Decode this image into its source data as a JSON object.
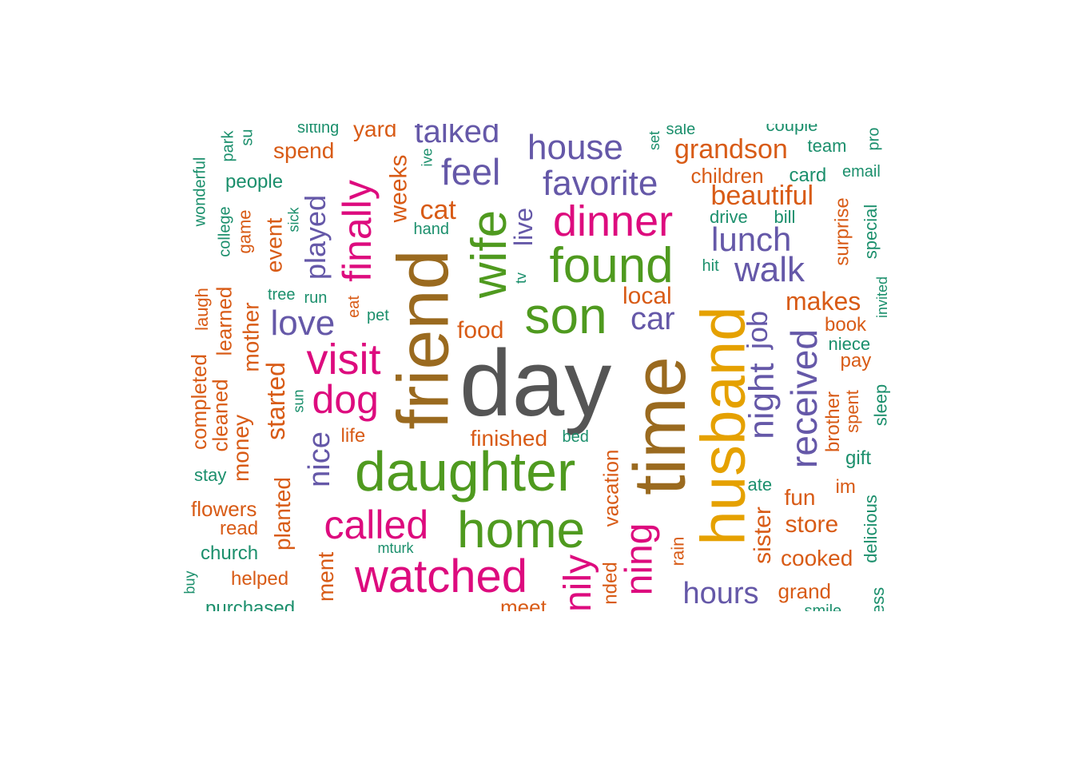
{
  "colors": {
    "gray": "#555555",
    "brown": "#9a6a1f",
    "green": "#4f9a1f",
    "magenta": "#dd0b7e",
    "purple": "#6558a8",
    "gold": "#e5a100",
    "orange": "#d85b16",
    "teal": "#1b8f6c"
  },
  "words": [
    {
      "text": "day",
      "color": "gray"
    },
    {
      "text": "time",
      "color": "brown"
    },
    {
      "text": "friend",
      "color": "brown"
    },
    {
      "text": "husband",
      "color": "gold"
    },
    {
      "text": "daughter",
      "color": "green"
    },
    {
      "text": "home",
      "color": "green"
    },
    {
      "text": "son",
      "color": "green"
    },
    {
      "text": "found",
      "color": "green"
    },
    {
      "text": "wife",
      "color": "green"
    },
    {
      "text": "watched",
      "color": "magenta"
    },
    {
      "text": "called",
      "color": "magenta"
    },
    {
      "text": "dinner",
      "color": "magenta"
    },
    {
      "text": "visit",
      "color": "magenta"
    },
    {
      "text": "dog",
      "color": "magenta"
    },
    {
      "text": "finally",
      "color": "magenta"
    },
    {
      "text": "ning",
      "color": "magenta"
    },
    {
      "text": "nily",
      "color": "magenta"
    },
    {
      "text": "house",
      "color": "purple"
    },
    {
      "text": "feel",
      "color": "purple"
    },
    {
      "text": "favorite",
      "color": "purple"
    },
    {
      "text": "talked",
      "color": "purple"
    },
    {
      "text": "lunch",
      "color": "purple"
    },
    {
      "text": "walk",
      "color": "purple"
    },
    {
      "text": "night",
      "color": "purple"
    },
    {
      "text": "job",
      "color": "purple"
    },
    {
      "text": "received",
      "color": "purple"
    },
    {
      "text": "car",
      "color": "purple"
    },
    {
      "text": "love",
      "color": "purple"
    },
    {
      "text": "played",
      "color": "purple"
    },
    {
      "text": "nice",
      "color": "purple"
    },
    {
      "text": "hours",
      "color": "purple"
    },
    {
      "text": "live",
      "color": "purple"
    },
    {
      "text": "grandson",
      "color": "orange"
    },
    {
      "text": "beautiful",
      "color": "orange"
    },
    {
      "text": "makes",
      "color": "orange"
    },
    {
      "text": "cat",
      "color": "orange"
    },
    {
      "text": "spend",
      "color": "orange"
    },
    {
      "text": "yard",
      "color": "orange"
    },
    {
      "text": "weeks",
      "color": "orange"
    },
    {
      "text": "local",
      "color": "orange"
    },
    {
      "text": "food",
      "color": "orange"
    },
    {
      "text": "finished",
      "color": "orange"
    },
    {
      "text": "life",
      "color": "orange"
    },
    {
      "text": "event",
      "color": "orange"
    },
    {
      "text": "started",
      "color": "orange"
    },
    {
      "text": "planted",
      "color": "orange"
    },
    {
      "text": "mother",
      "color": "orange"
    },
    {
      "text": "money",
      "color": "orange"
    },
    {
      "text": "game",
      "color": "orange"
    },
    {
      "text": "learned",
      "color": "orange"
    },
    {
      "text": "cleaned",
      "color": "orange"
    },
    {
      "text": "completed",
      "color": "orange"
    },
    {
      "text": "laugh",
      "color": "orange"
    },
    {
      "text": "flowers",
      "color": "orange"
    },
    {
      "text": "read",
      "color": "orange"
    },
    {
      "text": "helped",
      "color": "orange"
    },
    {
      "text": "ment",
      "color": "orange"
    },
    {
      "text": "vacation",
      "color": "orange"
    },
    {
      "text": "nded",
      "color": "orange"
    },
    {
      "text": "meet",
      "color": "orange"
    },
    {
      "text": "rain",
      "color": "orange"
    },
    {
      "text": "children",
      "color": "orange"
    },
    {
      "text": "surprise",
      "color": "orange"
    },
    {
      "text": "book",
      "color": "orange"
    },
    {
      "text": "pay",
      "color": "orange"
    },
    {
      "text": "brother",
      "color": "orange"
    },
    {
      "text": "spent",
      "color": "orange"
    },
    {
      "text": "im",
      "color": "orange"
    },
    {
      "text": "fun",
      "color": "orange"
    },
    {
      "text": "store",
      "color": "orange"
    },
    {
      "text": "sister",
      "color": "orange"
    },
    {
      "text": "cooked",
      "color": "orange"
    },
    {
      "text": "grand",
      "color": "orange"
    },
    {
      "text": "eat",
      "color": "orange"
    },
    {
      "text": "team",
      "color": "teal"
    },
    {
      "text": "email",
      "color": "teal"
    },
    {
      "text": "card",
      "color": "teal"
    },
    {
      "text": "drive",
      "color": "teal"
    },
    {
      "text": "bill",
      "color": "teal"
    },
    {
      "text": "hit",
      "color": "teal"
    },
    {
      "text": "special",
      "color": "teal"
    },
    {
      "text": "invited",
      "color": "teal"
    },
    {
      "text": "niece",
      "color": "teal"
    },
    {
      "text": "sleep",
      "color": "teal"
    },
    {
      "text": "gift",
      "color": "teal"
    },
    {
      "text": "ate",
      "color": "teal"
    },
    {
      "text": "delicious",
      "color": "teal"
    },
    {
      "text": "smile",
      "color": "teal"
    },
    {
      "text": "ess",
      "color": "teal"
    },
    {
      "text": "pro",
      "color": "teal"
    },
    {
      "text": "couple",
      "color": "teal"
    },
    {
      "text": "sale",
      "color": "teal"
    },
    {
      "text": "set",
      "color": "teal"
    },
    {
      "text": "sitting",
      "color": "teal"
    },
    {
      "text": "su",
      "color": "teal"
    },
    {
      "text": "park",
      "color": "teal"
    },
    {
      "text": "people",
      "color": "teal"
    },
    {
      "text": "wonderful",
      "color": "teal"
    },
    {
      "text": "college",
      "color": "teal"
    },
    {
      "text": "sick",
      "color": "teal"
    },
    {
      "text": "tree",
      "color": "teal"
    },
    {
      "text": "run",
      "color": "teal"
    },
    {
      "text": "pet",
      "color": "teal"
    },
    {
      "text": "hand",
      "color": "teal"
    },
    {
      "text": "ive",
      "color": "teal"
    },
    {
      "text": "tv",
      "color": "teal"
    },
    {
      "text": "sun",
      "color": "teal"
    },
    {
      "text": "bed",
      "color": "teal"
    },
    {
      "text": "stay",
      "color": "teal"
    },
    {
      "text": "church",
      "color": "teal"
    },
    {
      "text": "mturk",
      "color": "teal"
    },
    {
      "text": "buy",
      "color": "teal"
    },
    {
      "text": "purchased",
      "color": "teal"
    }
  ]
}
